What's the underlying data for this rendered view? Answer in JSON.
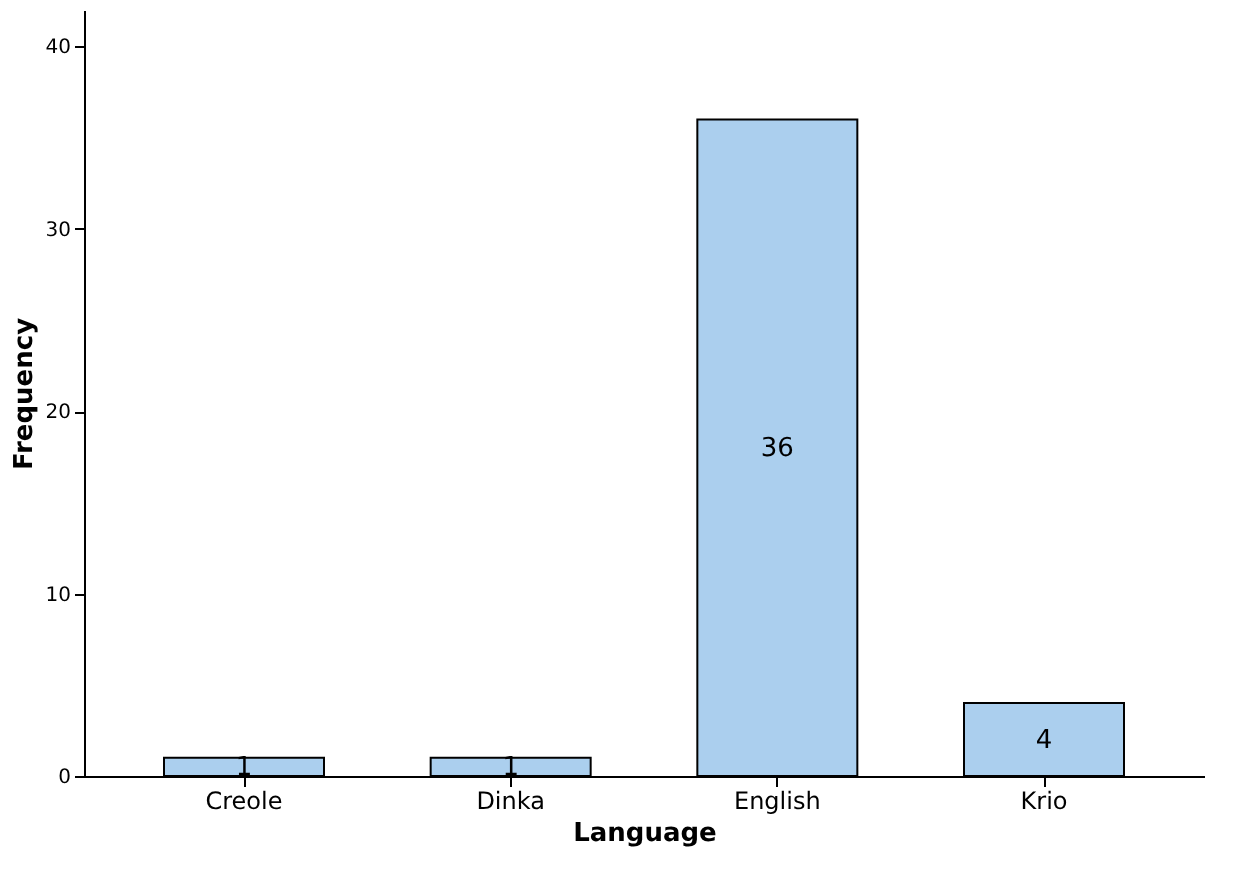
{
  "chart_data": {
    "type": "bar",
    "xlabel": "Language",
    "ylabel": "Frequency",
    "categories": [
      "Creole",
      "Dinka",
      "English",
      "Krio"
    ],
    "values": [
      1,
      1,
      36,
      4
    ],
    "color": "#abcfee",
    "ylim": [
      0,
      42
    ],
    "yticks": [
      0,
      10,
      20,
      30,
      40
    ],
    "grid": false,
    "data_labels": true
  }
}
